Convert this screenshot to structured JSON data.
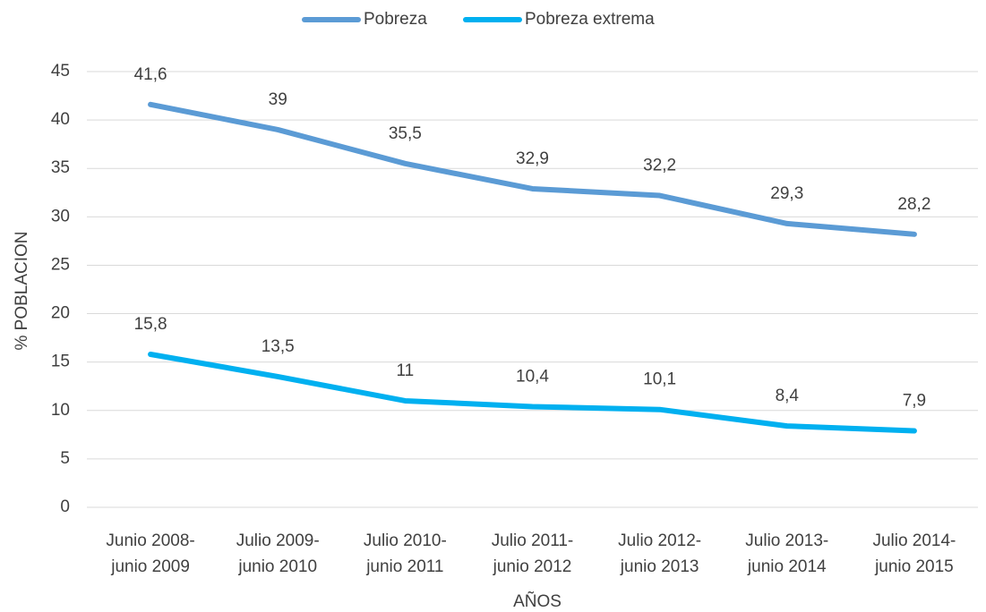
{
  "chart_data": {
    "type": "line",
    "x_label": "AÑOS",
    "y_label": "% POBLACION",
    "categories": [
      [
        "Junio 2008-",
        "junio 2009"
      ],
      [
        "Julio 2009-",
        "junio 2010"
      ],
      [
        "Julio 2010-",
        "junio 2011"
      ],
      [
        "Julio 2011-",
        "junio 2012"
      ],
      [
        "Julio 2012-",
        "junio 2013"
      ],
      [
        "Julio 2013-",
        "junio 2014"
      ],
      [
        "Julio 2014-",
        "junio 2015"
      ]
    ],
    "series": [
      {
        "name": "Pobreza",
        "color": "#5b9bd5",
        "values": [
          41.6,
          39,
          35.5,
          32.9,
          32.2,
          29.3,
          28.2
        ],
        "value_labels": [
          "41,6",
          "39",
          "35,5",
          "32,9",
          "32,2",
          "29,3",
          "28,2"
        ]
      },
      {
        "name": "Pobreza extrema",
        "color": "#00b0f0",
        "values": [
          15.8,
          13.5,
          11,
          10.4,
          10.1,
          8.4,
          7.9
        ],
        "value_labels": [
          "15,8",
          "13,5",
          "11",
          "10,4",
          "10,1",
          "8,4",
          "7,9"
        ]
      }
    ],
    "ylim": [
      0,
      45
    ],
    "yticks": [
      0,
      5,
      10,
      15,
      20,
      25,
      30,
      35,
      40,
      45
    ],
    "grid": true,
    "legend": "top"
  }
}
